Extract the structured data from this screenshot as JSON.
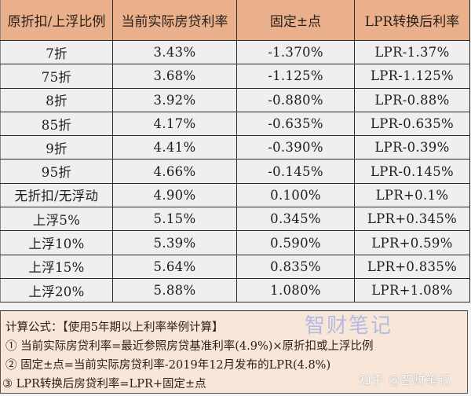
{
  "table": {
    "headers": [
      "原折扣/上浮比例",
      "当前实际房贷利率",
      "固定±点",
      "LPR转换后利率"
    ],
    "rows": [
      [
        "7折",
        "3.43%",
        "-1.370%",
        "LPR-1.37%"
      ],
      [
        "75折",
        "3.68%",
        "-1.125%",
        "LPR-1.125%"
      ],
      [
        "8折",
        "3.92%",
        "-0.880%",
        "LPR-0.88%"
      ],
      [
        "85折",
        "4.17%",
        "-0.635%",
        "LPR-0.635%"
      ],
      [
        "9折",
        "4.41%",
        "-0.390%",
        "LPR-0.39%"
      ],
      [
        "95折",
        "4.66%",
        "-0.145%",
        "LPR-0.145%"
      ],
      [
        "无折扣/无浮动",
        "4.90%",
        "0.100%",
        "LPR+0.1%"
      ],
      [
        "上浮5%",
        "5.15%",
        "0.345%",
        "LPR+0.345%"
      ],
      [
        "上浮10%",
        "5.39%",
        "0.590%",
        "LPR+0.59%"
      ],
      [
        "上浮15%",
        "5.64%",
        "0.835%",
        "LPR+0.835%"
      ],
      [
        "上浮20%",
        "5.88%",
        "1.080%",
        "LPR+1.08%"
      ]
    ]
  },
  "footer": {
    "title": "计算公式：【使用5年期以上利率举例计算】",
    "formulas": [
      "① 当前实际房贷利率=最近参照房贷基准利率(4.9%)×原折扣或上浮比例",
      "② 固定±点=当前实际房贷利率-2019年12月发布的LPR(4.8%)",
      "③ LPR转换后房贷利率=LPR+固定±点"
    ],
    "watermark_top": "智财笔记",
    "watermark_bottom": "知乎 @智财笔记"
  },
  "colors": {
    "header_bg": "#eab08b",
    "row_bg": "#efefef",
    "footer_bg": "#f8e6d8",
    "border": "#2a2a2a",
    "watermark": "#b5b9e3"
  }
}
